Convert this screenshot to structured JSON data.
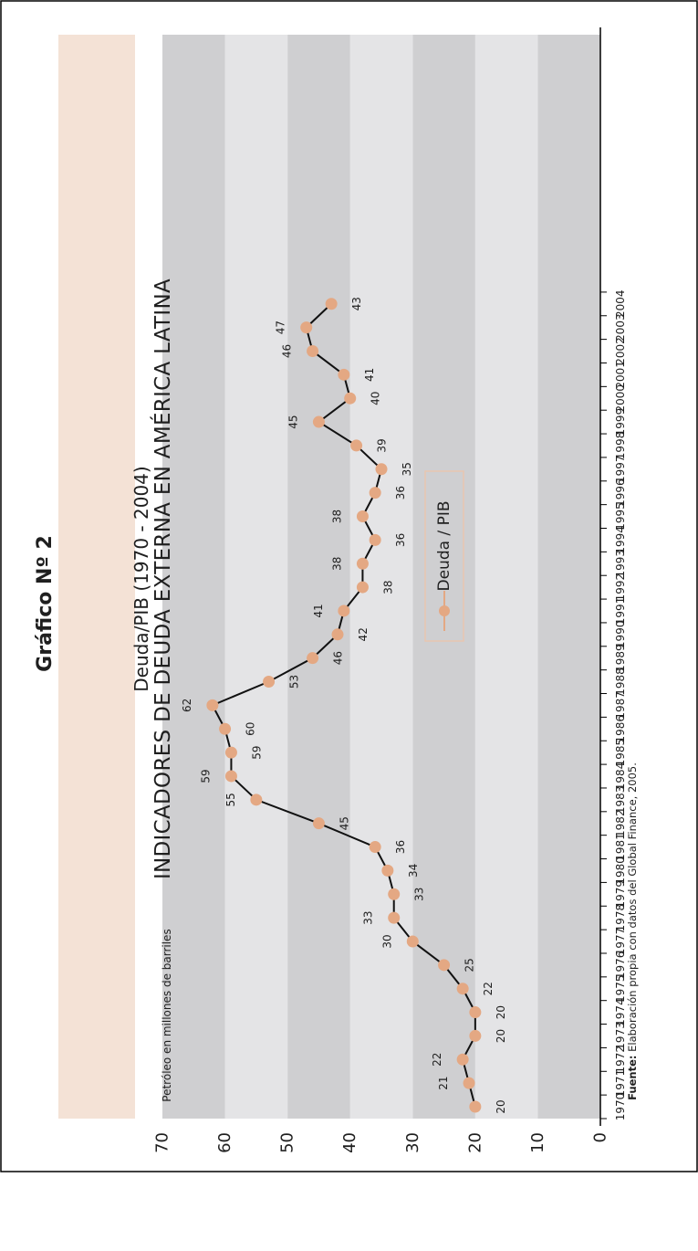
{
  "header": {
    "title": "Gráfico Nº 2",
    "subtitle": "INDICADORES DE DEUDA EXTERNA EN AMÉRICA LATINA",
    "subtitle2": "Deuda/PIB (1970 - 2004)"
  },
  "source": {
    "prefix": "Fuente:",
    "text": " Elaboración propia con datos del Global Finance, 2005."
  },
  "colors": {
    "band_title": "#f4e2d6",
    "band_dark": "#cfcfd1",
    "band_light": "#e4e4e6",
    "marker": "#e4a883",
    "line": "#111111",
    "legend_border": "#e9c6b0"
  },
  "chart_data": {
    "type": "line",
    "ylabel": "Petróleo en millones de barriles",
    "ylim": [
      0,
      70
    ],
    "yticks": [
      "0",
      "10",
      "20",
      "30",
      "40",
      "50",
      "60",
      "70"
    ],
    "categories": [
      "1970",
      "1971",
      "1972",
      "1973",
      "1974",
      "1975",
      "1976",
      "1977",
      "1978",
      "1979",
      "1980",
      "1981",
      "1982",
      "1983",
      "1984",
      "1985",
      "1986",
      "1987",
      "1988",
      "1989",
      "1990",
      "1991",
      "1992",
      "1993",
      "1994",
      "1995",
      "1996",
      "1997",
      "1998",
      "1999",
      "2000",
      "2001",
      "2002",
      "2003",
      "2004"
    ],
    "series": [
      {
        "name": "Deuda / PIB",
        "values": [
          20,
          21,
          22,
          20,
          20,
          22,
          25,
          30,
          33,
          33,
          34,
          36,
          45,
          55,
          59,
          59,
          60,
          62,
          53,
          46,
          42,
          41,
          38,
          38,
          36,
          38,
          36,
          35,
          39,
          45,
          40,
          41,
          46,
          47,
          43
        ],
        "labels": [
          "20",
          "21",
          "22",
          "20",
          "20",
          "22",
          "25",
          "30",
          "33",
          "33",
          "34",
          "36",
          "45",
          "55",
          "59",
          "59",
          "60",
          "62",
          "53",
          "46",
          "42",
          "41",
          "38",
          "38",
          "36",
          "38",
          "36",
          "35",
          "39",
          "45",
          "40",
          "41",
          "46",
          "47",
          "43"
        ]
      }
    ],
    "legend": "Deuda / PIB",
    "legend_position": "center-right",
    "grid": false
  }
}
